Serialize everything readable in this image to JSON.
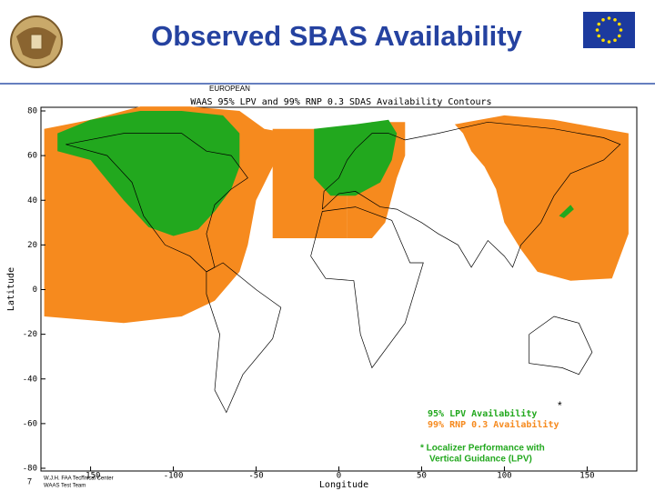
{
  "header": {
    "title": "Observed SBAS Availability",
    "label": "EUROPEAN"
  },
  "map": {
    "title": "WAAS 95% LPV and 99% RNP 0.3 SDAS Availability Contours",
    "y_axis_label": "Latitude",
    "x_axis_label": "Longitude",
    "lat_ticks": [
      80,
      60,
      40,
      20,
      0,
      -20,
      -40,
      -60,
      -80
    ],
    "lon_ticks": [
      -150,
      -100,
      -50,
      0,
      50,
      100,
      150
    ],
    "legend": [
      {
        "label": "95% LPV Availability",
        "color": "#22a81e"
      },
      {
        "label": "99% RNP 0.3 Availability",
        "color": "#f68a1e"
      }
    ],
    "legend_marker": "*",
    "footnote": [
      "* Localizer Performance with",
      "Vertical Guidance (LPV)"
    ],
    "credit": [
      "W.J.H. FAA Technical Center",
      "WAAS Test Team"
    ]
  },
  "footer": {
    "page_number": "7"
  }
}
